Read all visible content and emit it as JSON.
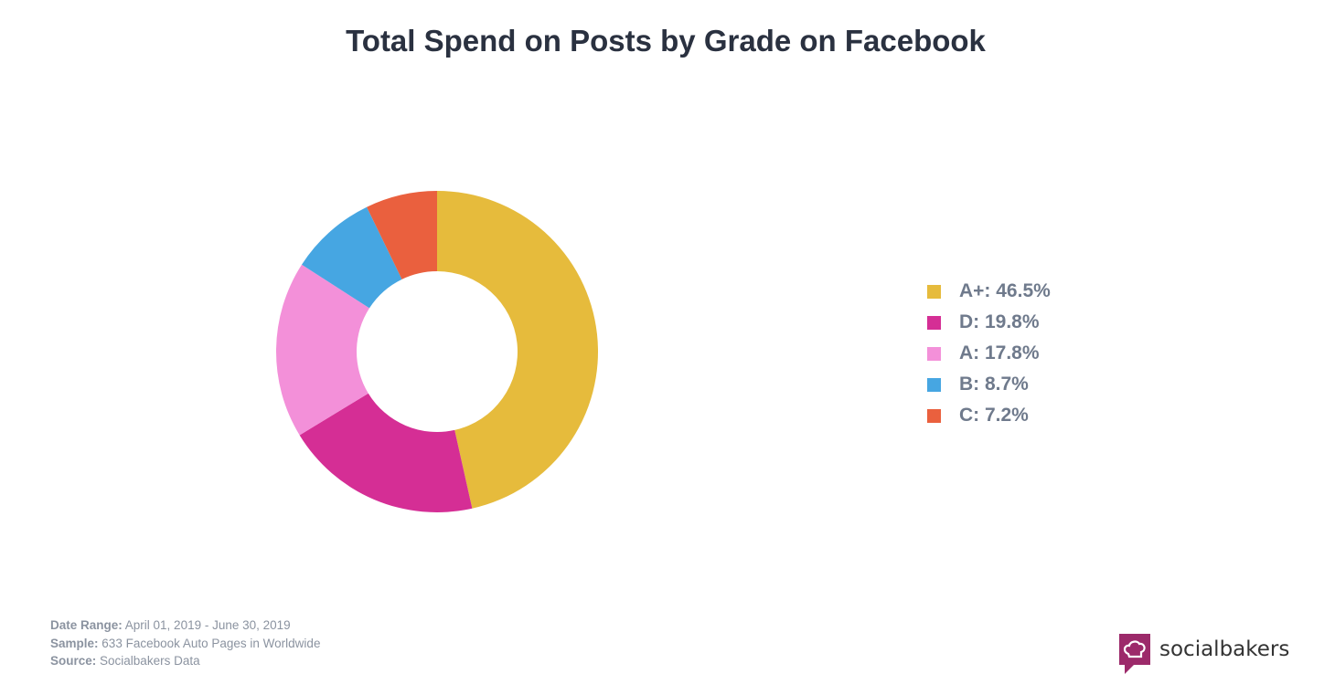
{
  "chart_data": {
    "type": "pie",
    "title": "Total Spend on Posts by Grade on Facebook",
    "donut": true,
    "legend_position": "right",
    "slices": [
      {
        "label": "A+",
        "value": 46.5,
        "legend": "A+: 46.5%",
        "color": "#e6bb3c"
      },
      {
        "label": "D",
        "value": 19.8,
        "legend": "D: 19.8%",
        "color": "#d52e95"
      },
      {
        "label": "A",
        "value": 17.8,
        "legend": "A: 17.8%",
        "color": "#f390d9"
      },
      {
        "label": "B",
        "value": 8.7,
        "legend": "B: 8.7%",
        "color": "#46a6e2"
      },
      {
        "label": "C",
        "value": 7.2,
        "legend": "C: 7.2%",
        "color": "#ea603e"
      }
    ]
  },
  "footer": {
    "date_label": "Date Range:",
    "date_value": "April 01, 2019 - June 30, 2019",
    "sample_label": "Sample:",
    "sample_value": "633 Facebook Auto Pages in Worldwide",
    "source_label": "Source:",
    "source_value": "Socialbakers Data"
  },
  "logo": {
    "name": "socialbakers",
    "icon": "chef-hat-icon"
  }
}
